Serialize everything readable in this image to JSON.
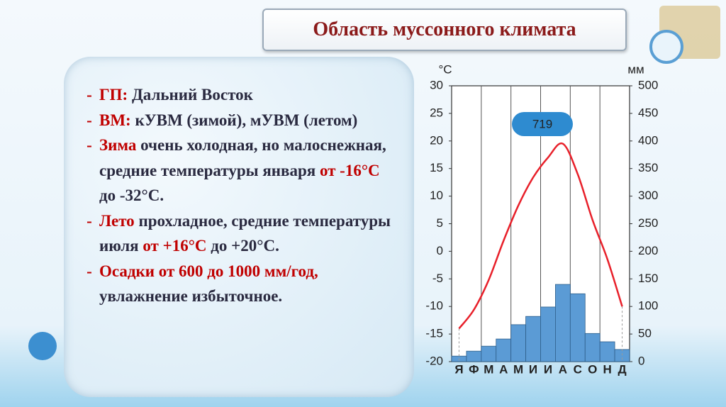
{
  "title": "Область муссонного климата",
  "bullet_marker": "-",
  "bullets": [
    [
      {
        "text": "ГП:",
        "color": "#c00000"
      },
      {
        "text": " Дальний Восток",
        "color": "#2a2a40"
      }
    ],
    [
      {
        "text": "ВМ:",
        "color": "#c00000"
      },
      {
        "text": " кУВМ (зимой), мУВМ (летом)",
        "color": "#2a2a40"
      }
    ],
    [
      {
        "text": "Зима",
        "color": "#c00000"
      },
      {
        "text": " очень холодная, но малоснежная, средние температуры января ",
        "color": "#2a2a40"
      },
      {
        "text": "от -16°С",
        "color": "#c00000"
      },
      {
        "text": " до -32°С.",
        "color": "#2a2a40"
      }
    ],
    [
      {
        "text": "Лето",
        "color": "#c00000"
      },
      {
        "text": " прохладное, средние температуры июля ",
        "color": "#2a2a40"
      },
      {
        "text": "от +16°С",
        "color": "#c00000"
      },
      {
        "text": " до +20°С.",
        "color": "#2a2a40"
      }
    ],
    [
      {
        "text": "Осадки от 600 до 1000 мм/год,",
        "color": "#c00000"
      },
      {
        "text": " увлажнение избыточное.",
        "color": "#2a2a40"
      }
    ]
  ],
  "chart_data": {
    "type": "combo",
    "y_label": "°C",
    "y2_label": "мм",
    "annotation": "719",
    "categories": [
      "Я",
      "Ф",
      "М",
      "А",
      "М",
      "И",
      "И",
      "А",
      "С",
      "О",
      "Н",
      "Д"
    ],
    "series": [
      {
        "type": "bar",
        "axis": "y2",
        "color": "#5b9bd5",
        "values": [
          10,
          19,
          28,
          41,
          67,
          82,
          99,
          140,
          123,
          51,
          36,
          22
        ]
      },
      {
        "type": "line",
        "color": "#e8202a",
        "values": [
          -14,
          -10.6,
          -5.2,
          1.9,
          8.3,
          13.4,
          17,
          19.5,
          14,
          5.7,
          -1.4,
          -10
        ]
      }
    ],
    "ylim": [
      -20,
      30
    ],
    "yticks": [
      -20,
      -15,
      -10,
      -5,
      0,
      5,
      10,
      15,
      20,
      25,
      30
    ],
    "y2lim": [
      0,
      500
    ],
    "y2ticks": [
      0,
      50,
      100,
      150,
      200,
      250,
      300,
      350,
      400,
      450,
      500
    ]
  }
}
